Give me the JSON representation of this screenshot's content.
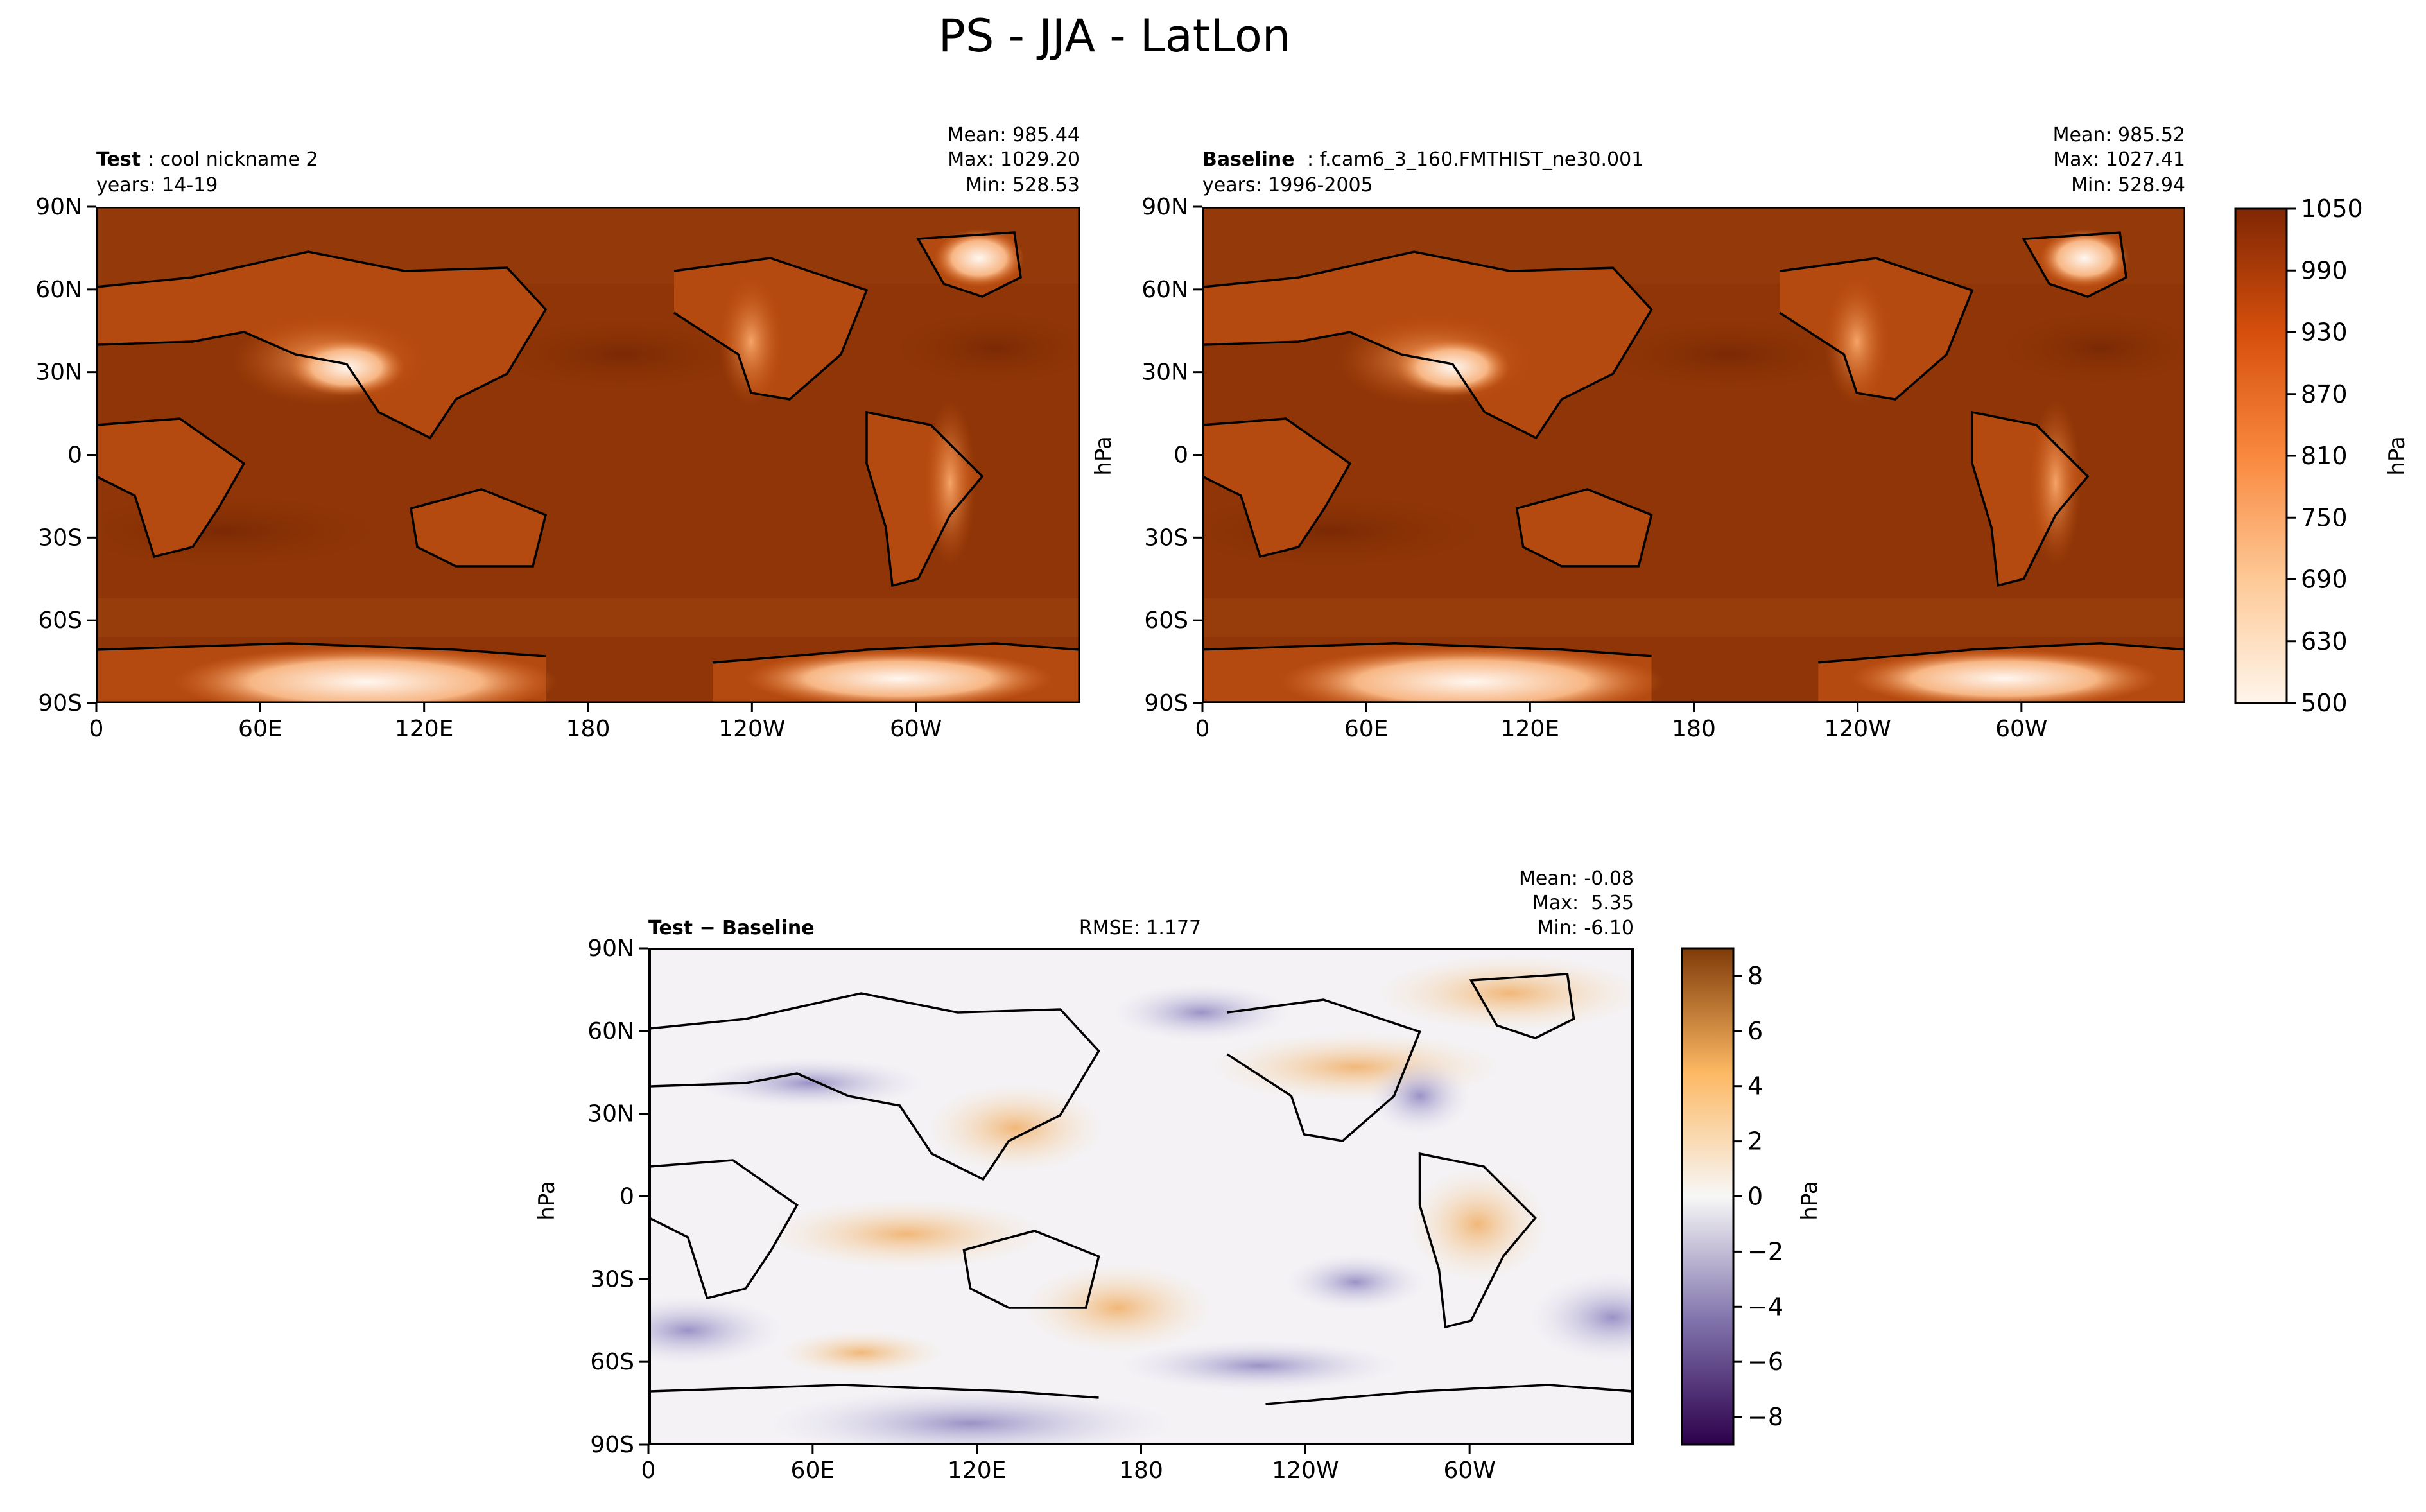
{
  "figure": {
    "title": "PS - JJA - LatLon"
  },
  "chart_data": [
    {
      "type": "heatmap",
      "panel": "test",
      "label_bold": "Test",
      "label_rest": ": cool nickname 2",
      "years": "years: 14-19",
      "stats": [
        "Mean: 985.44",
        "Max: 1029.20",
        "Min: 528.53"
      ],
      "x_ticks": [
        "0",
        "60E",
        "120E",
        "180",
        "120W",
        "60W"
      ],
      "x_tick_lon": [
        0,
        60,
        120,
        180,
        240,
        300
      ],
      "y_ticks": [
        "90N",
        "60N",
        "30N",
        "0",
        "30S",
        "60S",
        "90S"
      ],
      "y_tick_lat": [
        90,
        60,
        30,
        0,
        -30,
        -60,
        -90
      ],
      "xlim": [
        0,
        360
      ],
      "ylim": [
        -90,
        90
      ]
    },
    {
      "type": "heatmap",
      "panel": "baseline",
      "label_bold": "Baseline",
      "label_rest": ": f.cam6_3_160.FMTHIST_ne30.001",
      "years": "years: 1996-2005",
      "stats": [
        "Mean: 985.52",
        "Max: 1027.41",
        "Min: 528.94"
      ],
      "ylabel": "hPa",
      "x_ticks": [
        "0",
        "60E",
        "120E",
        "180",
        "120W",
        "60W"
      ],
      "x_tick_lon": [
        0,
        60,
        120,
        180,
        240,
        300
      ],
      "y_ticks": [
        "90N",
        "60N",
        "30N",
        "0",
        "30S",
        "60S",
        "90S"
      ],
      "y_tick_lat": [
        90,
        60,
        30,
        0,
        -30,
        -60,
        -90
      ],
      "xlim": [
        0,
        360
      ],
      "ylim": [
        -90,
        90
      ],
      "colorbar": {
        "ticks": [
          "1050",
          "990",
          "930",
          "870",
          "810",
          "750",
          "690",
          "630",
          "500"
        ],
        "levels": [
          500,
          1050
        ],
        "label": "hPa",
        "cmap": "Oranges"
      }
    },
    {
      "type": "heatmap",
      "panel": "difference",
      "label": "Test − Baseline",
      "rmse": "RMSE: 1.177",
      "stats": [
        "Mean: -0.08",
        "Max:  5.35",
        "Min: -6.10"
      ],
      "ylabel": "hPa",
      "x_ticks": [
        "0",
        "60E",
        "120E",
        "180",
        "120W",
        "60W"
      ],
      "x_tick_lon": [
        0,
        60,
        120,
        180,
        240,
        300
      ],
      "y_ticks": [
        "90N",
        "60N",
        "30N",
        "0",
        "30S",
        "60S",
        "90S"
      ],
      "y_tick_lat": [
        90,
        60,
        30,
        0,
        -30,
        -60,
        -90
      ],
      "xlim": [
        0,
        360
      ],
      "ylim": [
        -90,
        90
      ],
      "colorbar": {
        "ticks": [
          "8",
          "6",
          "4",
          "2",
          "0",
          "−2",
          "−4",
          "−6",
          "−8"
        ],
        "tick_values": [
          8,
          6,
          4,
          2,
          0,
          -2,
          -4,
          -6,
          -8
        ],
        "levels": [
          -9,
          9
        ],
        "label": "hPa",
        "cmap": "PuOr_r"
      }
    }
  ],
  "colors": {
    "ocean_test": "#8f3507",
    "land_low": "#c75512",
    "highland": "#f19a5a",
    "plateau": "#fde4cf",
    "diff_neutral": "#f4f2f5",
    "diff_pos": "#f5c892",
    "diff_neg": "#bdb7dc"
  }
}
